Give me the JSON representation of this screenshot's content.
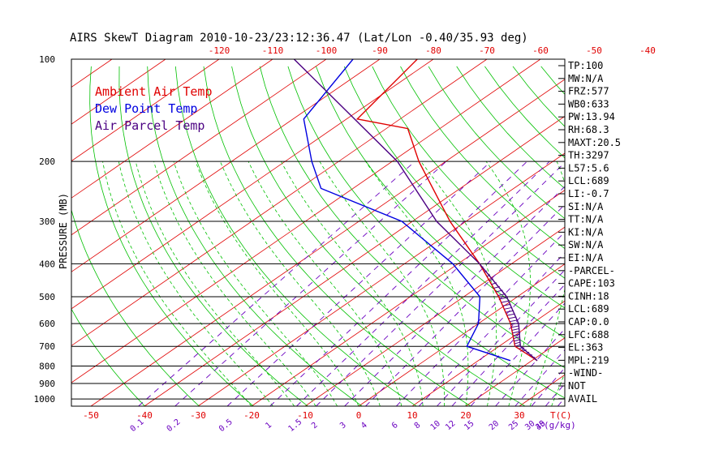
{
  "title": "AIRS SkewT Diagram 2010-10-23/23:12:36.47 (Lat/Lon -0.40/35.93 deg)",
  "legend": [
    {
      "label": "Ambient Air Temp",
      "color": "#e00000"
    },
    {
      "label": "Dew Point Temp",
      "color": "#0000e0"
    },
    {
      "label": "Air Parcel Temp",
      "color": "#4b0082"
    }
  ],
  "side_panel": [
    "TP:100",
    "MW:N/A",
    "FRZ:577",
    "WB0:633",
    "PW:13.94",
    "RH:68.3",
    "MAXT:20.5",
    "TH:3297",
    "L57:5.6",
    "LCL:689",
    "LI:-0.7",
    "SI:N/A",
    "TT:N/A",
    "KI:N/A",
    "SW:N/A",
    "EI:N/A",
    "-PARCEL-",
    "CAPE:103",
    "CINH:18",
    "LCL:689",
    "CAP:0.0",
    "LFC:688",
    "EL:363",
    "MPL:219",
    "-WIND-",
    "NOT",
    "AVAIL"
  ],
  "colors": {
    "isotherm": "#e00000",
    "dry_adiabat": "#00c000",
    "moist_adiabat": "#00c000",
    "mixing_ratio": "#6a00c0",
    "axis": "#000000",
    "tick_label_red": "#e00000",
    "mixing_label": "#6a00c0"
  },
  "chart_data": {
    "type": "line",
    "title": "AIRS SkewT Diagram 2010-10-23/23:12:36.47 (Lat/Lon -0.40/35.93 deg)",
    "ylabel": "PRESSURE (MB)",
    "xlabel": "T(C)",
    "y_scale": "log-pressure",
    "ylim": [
      1050,
      100
    ],
    "pressure_ticks": [
      100,
      200,
      300,
      400,
      500,
      600,
      700,
      800,
      900,
      1000
    ],
    "top_temp_ticks": [
      -120,
      -110,
      -100,
      -90,
      -80,
      -70,
      -60,
      -50,
      -40
    ],
    "bottom_temp_ticks": [
      -50,
      -40,
      -30,
      -20,
      -10,
      0,
      10,
      20,
      30
    ],
    "mixing_ratio_ticks": [
      "0.1",
      "0.2",
      "0.5",
      "1",
      "1.5",
      "2",
      "3",
      "4",
      "6",
      "8",
      "10",
      "12",
      "15",
      "20",
      "25",
      "30",
      "35",
      "40"
    ],
    "mixing_ratio_unit": "(g/kg)",
    "grid": true,
    "series": [
      {
        "name": "Ambient Air Temp",
        "color": "#e00000",
        "points": [
          {
            "p": 771,
            "t": 21.0
          },
          {
            "p": 700,
            "t": 13.0
          },
          {
            "p": 600,
            "t": 6.0
          },
          {
            "p": 500,
            "t": -3.5
          },
          {
            "p": 400,
            "t": -16.0
          },
          {
            "p": 300,
            "t": -33.0
          },
          {
            "p": 200,
            "t": -55.0
          },
          {
            "p": 160,
            "t": -66.0
          },
          {
            "p": 150,
            "t": -78.0
          },
          {
            "p": 100,
            "t": -83.0
          }
        ]
      },
      {
        "name": "Dew Point Temp",
        "color": "#0000e0",
        "points": [
          {
            "p": 771,
            "t": 16.0
          },
          {
            "p": 700,
            "t": 4.0
          },
          {
            "p": 600,
            "t": 0.0
          },
          {
            "p": 500,
            "t": -7.0
          },
          {
            "p": 400,
            "t": -21.0
          },
          {
            "p": 300,
            "t": -42.0
          },
          {
            "p": 240,
            "t": -66.0
          },
          {
            "p": 200,
            "t": -75.0
          },
          {
            "p": 150,
            "t": -88.0
          },
          {
            "p": 100,
            "t": -95.0
          }
        ]
      },
      {
        "name": "Air Parcel Temp",
        "color": "#4b0082",
        "points": [
          {
            "p": 771,
            "t": 21.0
          },
          {
            "p": 700,
            "t": 14.0
          },
          {
            "p": 600,
            "t": 7.5
          },
          {
            "p": 500,
            "t": -2.0
          },
          {
            "p": 400,
            "t": -16.0
          },
          {
            "p": 300,
            "t": -35.5
          },
          {
            "p": 200,
            "t": -59.0
          },
          {
            "p": 100,
            "t": -106.0
          }
        ]
      }
    ]
  }
}
